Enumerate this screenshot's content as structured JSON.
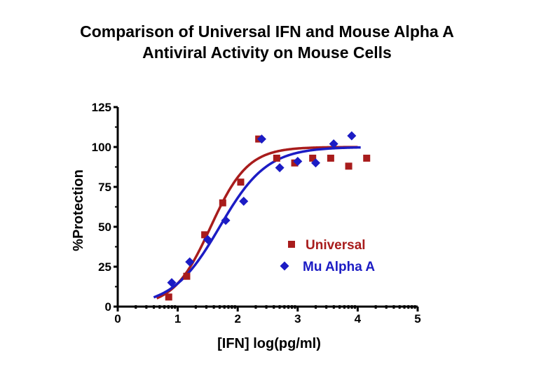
{
  "chart_data": {
    "type": "scatter",
    "title_lines": [
      "Comparison of Universal IFN and Mouse Alpha A",
      "Antiviral Activity on Mouse Cells"
    ],
    "xlabel": "[IFN] log(pg/ml)",
    "ylabel": "%Protection",
    "xlim": [
      0,
      5
    ],
    "ylim": [
      0,
      125
    ],
    "x_ticks": [
      "0",
      "1",
      "2",
      "3",
      "4",
      "5"
    ],
    "y_ticks": [
      "0",
      "25",
      "50",
      "75",
      "100",
      "125"
    ],
    "legend_position": "center-right",
    "series": [
      {
        "name": "Universal",
        "marker": "square",
        "color": "#a81c1c",
        "points": [
          {
            "x": 0.85,
            "y": 6
          },
          {
            "x": 1.15,
            "y": 19
          },
          {
            "x": 1.45,
            "y": 45
          },
          {
            "x": 1.75,
            "y": 65
          },
          {
            "x": 2.05,
            "y": 78
          },
          {
            "x": 2.35,
            "y": 105
          },
          {
            "x": 2.65,
            "y": 93
          },
          {
            "x": 2.95,
            "y": 90
          },
          {
            "x": 3.25,
            "y": 93
          },
          {
            "x": 3.55,
            "y": 93
          },
          {
            "x": 3.85,
            "y": 88
          },
          {
            "x": 4.15,
            "y": 93
          }
        ],
        "fit": {
          "bottom": 0,
          "top": 100,
          "log_ec50": 1.55,
          "hill_slope": 1.4,
          "x_range": [
            0.65,
            4.0
          ]
        }
      },
      {
        "name": "Mu Alpha A",
        "marker": "diamond",
        "color": "#1c1cc4",
        "points": [
          {
            "x": 0.9,
            "y": 15
          },
          {
            "x": 1.2,
            "y": 28
          },
          {
            "x": 1.5,
            "y": 42
          },
          {
            "x": 1.8,
            "y": 54
          },
          {
            "x": 2.1,
            "y": 66
          },
          {
            "x": 2.4,
            "y": 105
          },
          {
            "x": 2.7,
            "y": 87
          },
          {
            "x": 3.0,
            "y": 91
          },
          {
            "x": 3.3,
            "y": 90
          },
          {
            "x": 3.6,
            "y": 102
          },
          {
            "x": 3.9,
            "y": 107
          }
        ],
        "fit": {
          "bottom": 0,
          "top": 100,
          "log_ec50": 1.7,
          "hill_slope": 1.1,
          "x_range": [
            0.6,
            4.05
          ]
        }
      }
    ]
  }
}
